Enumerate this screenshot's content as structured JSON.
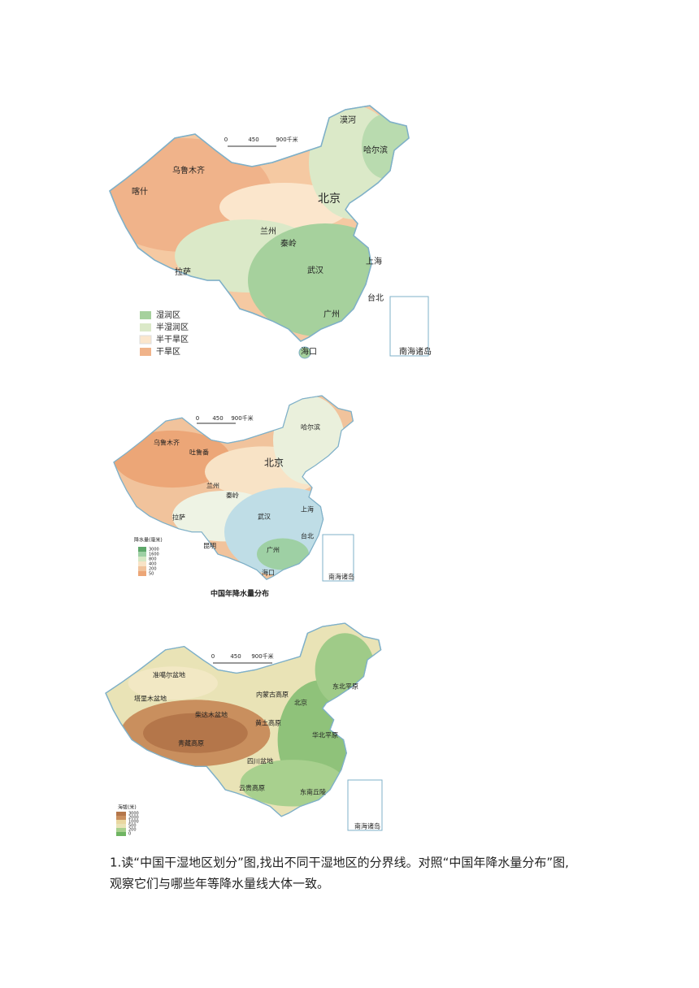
{
  "map1": {
    "scale": [
      "0",
      "450",
      "900千米"
    ],
    "places": [
      "漠河",
      "哈尔滨",
      "乌鲁木齐",
      "喀什",
      "北京",
      "兰州",
      "秦岭",
      "拉萨",
      "武汉",
      "上海",
      "台北",
      "广州",
      "海口",
      "南海诸岛"
    ],
    "legend": [
      "湿润区",
      "半湿润区",
      "半干旱区",
      "干旱区"
    ]
  },
  "map2": {
    "scale": [
      "0",
      "450",
      "900千米"
    ],
    "places": [
      "哈尔滨",
      "乌鲁木齐",
      "吐鲁番",
      "北京",
      "兰州",
      "秦岭",
      "拉萨",
      "武汉",
      "上海",
      "昆明",
      "广州",
      "台北",
      "海口",
      "南海诸岛"
    ],
    "legend_title": "降水量(毫米)",
    "legend": [
      "3000",
      "1600",
      "800",
      "400",
      "200",
      "50"
    ],
    "caption": "中国年降水量分布"
  },
  "map3": {
    "scale": [
      "0",
      "450",
      "900千米"
    ],
    "places": [
      "准噶尔盆地",
      "塔里木盆地",
      "柴达木盆地",
      "青藏高原",
      "内蒙古高原",
      "黄土高原",
      "四川盆地",
      "云贵高原",
      "东南丘陵",
      "华北平原",
      "东北平原",
      "北京",
      "南海诸岛"
    ],
    "legend_title": "海拔(米)",
    "legend": [
      "3000",
      "2000",
      "1000",
      "500",
      "200",
      "0"
    ]
  },
  "question": [
    "1.读“中国干湿地区划分”图,找出不同干湿地区的分界线。对照“中国年降水量分布”图,",
    "观察它们与哪些年等降水量线大体一致。"
  ]
}
